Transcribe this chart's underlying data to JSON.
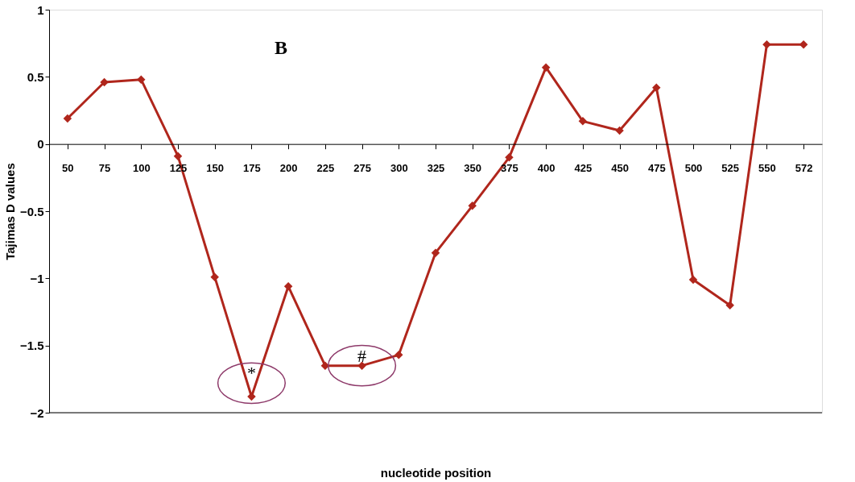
{
  "chart_data": {
    "type": "line",
    "xlabel": "nucleotide position",
    "ylabel": "Tajimas D values",
    "categories": [
      "50",
      "75",
      "100",
      "125",
      "150",
      "175",
      "200",
      "225",
      "275",
      "300",
      "325",
      "350",
      "375",
      "400",
      "425",
      "450",
      "475",
      "500",
      "525",
      "550",
      "572"
    ],
    "series": [
      {
        "color": "#b0261c",
        "values": [
          0.19,
          0.46,
          0.48,
          -0.09,
          -0.99,
          -1.88,
          -1.06,
          -1.65,
          -1.65,
          -1.57,
          -0.81,
          -0.46,
          -0.1,
          0.57,
          0.17,
          0.1,
          0.42,
          -1.01,
          -1.2,
          0.74,
          0.74
        ]
      }
    ],
    "ylim": [
      -2,
      1
    ],
    "yticks": [
      -2,
      -1.5,
      -1,
      -0.5,
      0,
      0.5,
      1
    ],
    "annotations": [
      "B",
      {
        "text": "*",
        "x": "175",
        "y": -1.78
      },
      {
        "text": "#",
        "x": "275",
        "y": -1.65
      }
    ],
    "marker": "diamond",
    "line_style": "solid",
    "grid": false
  }
}
